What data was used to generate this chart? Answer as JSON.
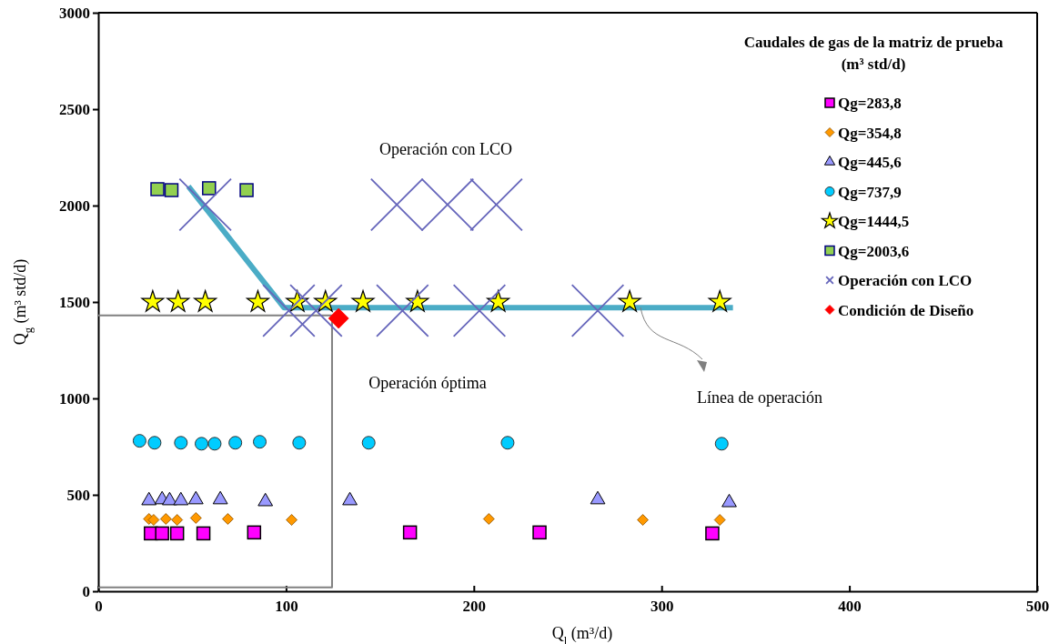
{
  "chart_data": {
    "type": "scatter",
    "xlabel": "Q$_{l}$ (m³/d)",
    "ylabel": "Q$_{g}$ (m³ std/d)",
    "legend_title": "Caudales de gas de la matriz de prueba (m³ std/d)",
    "legend": "top right",
    "grid": false,
    "xlim": [
      0,
      500
    ],
    "xticks": [
      0,
      100,
      200,
      300,
      400,
      500
    ],
    "ylim": [
      0,
      3000
    ],
    "yticks": [
      0,
      500,
      1000,
      1500,
      2000,
      2500,
      3000
    ],
    "annotations": [
      "Operación  con LCO",
      "Operación óptima",
      "Línea de operación"
    ],
    "series": [
      {
        "type": "line",
        "color": "#808080",
        "marker": "none",
        "x": [
          0,
          124.5,
          124.5,
          0
        ],
        "values": [
          1430,
          1430,
          20,
          20
        ]
      },
      {
        "type": "line",
        "color": "#4bacc6",
        "marker": "none",
        "x": [
          48,
          99,
          338
        ],
        "values": [
          2100,
          1470,
          1470
        ]
      },
      {
        "name": "Qg=283,8",
        "color": "#ff00ff",
        "marker": "square",
        "x": [
          28,
          34,
          42,
          56,
          83,
          166,
          235,
          327
        ],
        "values": [
          300,
          300,
          300,
          300,
          305,
          305,
          305,
          300
        ]
      },
      {
        "name": "Qg=354,8",
        "color": "#ff9900",
        "marker": "diamond",
        "x": [
          27,
          29.5,
          36,
          42,
          52,
          69,
          103,
          208,
          290,
          331
        ],
        "values": [
          375,
          370,
          375,
          370,
          380,
          375,
          370,
          375,
          370,
          370
        ]
      },
      {
        "name": "Qg=445,6",
        "color": "#9999ff",
        "marker": "triangle",
        "x": [
          27,
          34,
          38,
          44,
          52,
          65,
          89,
          134,
          266,
          336
        ],
        "values": [
          470,
          475,
          470,
          470,
          475,
          475,
          465,
          470,
          475,
          460
        ]
      },
      {
        "name": "Qg=737,9",
        "color": "#00ccff",
        "marker": "circle",
        "x": [
          22,
          30,
          44,
          55,
          62,
          73,
          86,
          107,
          144,
          218,
          332
        ],
        "values": [
          780,
          770,
          770,
          765,
          765,
          770,
          775,
          770,
          770,
          770,
          765
        ]
      },
      {
        "name": "Qg=1444,5",
        "color": "#ffff00",
        "marker": "star",
        "x": [
          29,
          42.5,
          57,
          85,
          106,
          121,
          141,
          170,
          213,
          283,
          331
        ],
        "values": [
          1500,
          1500,
          1500,
          1500,
          1500,
          1500,
          1500,
          1500,
          1500,
          1500,
          1500
        ]
      },
      {
        "name": "Qg=2003,6",
        "color": "#92d050",
        "marker": "square",
        "x": [
          31.5,
          39,
          59,
          79
        ],
        "values": [
          2085,
          2080,
          2090,
          2080
        ]
      },
      {
        "name": "Operación con LCO",
        "color": "#6666bb",
        "marker": "cross",
        "x": [
          57,
          159,
          186,
          212,
          101.5,
          116,
          162,
          203,
          266
        ],
        "values": [
          2005,
          2005,
          2005,
          2005,
          1455,
          1455,
          1455,
          1455,
          1455
        ]
      },
      {
        "name": "Condición de Diseño",
        "color": "#ff0000",
        "marker": "diamond",
        "x": [
          128
        ],
        "values": [
          1415
        ]
      }
    ]
  }
}
